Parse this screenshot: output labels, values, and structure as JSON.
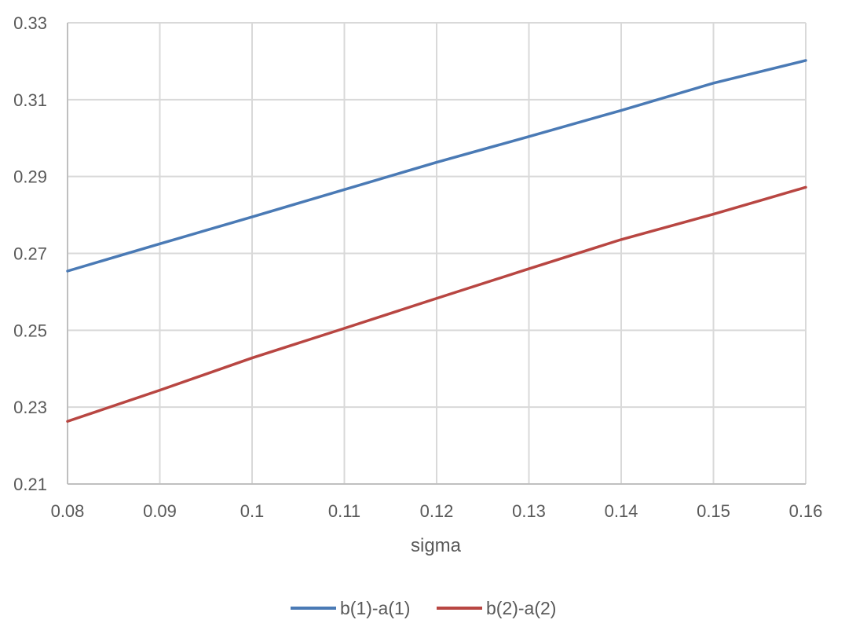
{
  "chart_data": {
    "type": "line",
    "title": "",
    "xlabel": "sigma",
    "ylabel": "",
    "xlim": [
      0.08,
      0.16
    ],
    "ylim": [
      0.21,
      0.33
    ],
    "x_ticks": [
      "0.08",
      "0.09",
      "0.1",
      "0.11",
      "0.12",
      "0.13",
      "0.14",
      "0.15",
      "0.16"
    ],
    "y_ticks": [
      "0.21",
      "0.23",
      "0.25",
      "0.27",
      "0.29",
      "0.31",
      "0.33"
    ],
    "grid": true,
    "legend_position": "bottom",
    "x": [
      0.08,
      0.09,
      0.1,
      0.11,
      0.12,
      0.13,
      0.14,
      0.15,
      0.16
    ],
    "series": [
      {
        "name": "b(1)-a(1)",
        "color": "#4a7ab5",
        "values": [
          0.2654,
          0.2725,
          0.2795,
          0.2866,
          0.2937,
          0.3004,
          0.3072,
          0.3143,
          0.3202
        ]
      },
      {
        "name": "b(2)-a(2)",
        "color": "#b84642",
        "values": [
          0.2263,
          0.2344,
          0.2428,
          0.2505,
          0.2583,
          0.266,
          0.2736,
          0.2802,
          0.2872
        ]
      }
    ]
  }
}
